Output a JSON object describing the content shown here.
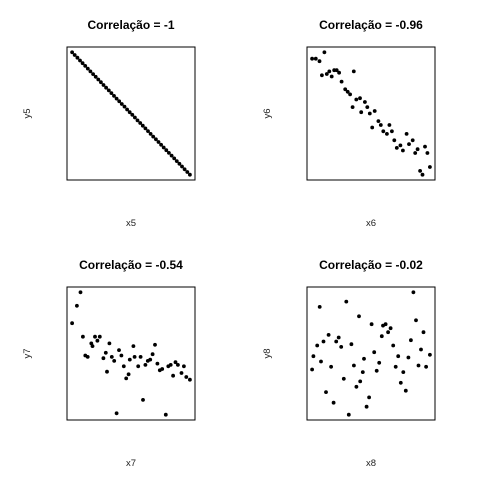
{
  "chart_data": [
    {
      "type": "scatter",
      "title": "Correlação = -1",
      "xlabel": "x5",
      "ylabel": "y5",
      "points": [
        [
          1,
          1.0
        ],
        [
          2,
          0.978
        ],
        [
          3,
          0.956
        ],
        [
          4,
          0.933
        ],
        [
          5,
          0.911
        ],
        [
          6,
          0.889
        ],
        [
          7,
          0.867
        ],
        [
          8,
          0.844
        ],
        [
          9,
          0.822
        ],
        [
          10,
          0.8
        ],
        [
          11,
          0.778
        ],
        [
          12,
          0.756
        ],
        [
          13,
          0.733
        ],
        [
          14,
          0.711
        ],
        [
          15,
          0.689
        ],
        [
          16,
          0.667
        ],
        [
          17,
          0.644
        ],
        [
          18,
          0.622
        ],
        [
          19,
          0.6
        ],
        [
          20,
          0.578
        ],
        [
          21,
          0.556
        ],
        [
          22,
          0.533
        ],
        [
          23,
          0.511
        ],
        [
          24,
          0.489
        ],
        [
          25,
          0.467
        ],
        [
          26,
          0.444
        ],
        [
          27,
          0.422
        ],
        [
          28,
          0.4
        ],
        [
          29,
          0.378
        ],
        [
          30,
          0.356
        ],
        [
          31,
          0.333
        ],
        [
          32,
          0.311
        ],
        [
          33,
          0.289
        ],
        [
          34,
          0.267
        ],
        [
          35,
          0.244
        ],
        [
          36,
          0.222
        ],
        [
          37,
          0.2
        ],
        [
          38,
          0.178
        ],
        [
          39,
          0.156
        ],
        [
          40,
          0.133
        ],
        [
          41,
          0.111
        ],
        [
          42,
          0.089
        ],
        [
          43,
          0.067
        ],
        [
          44,
          0.044
        ],
        [
          45,
          0.022
        ],
        [
          46,
          0.0
        ]
      ]
    },
    {
      "type": "scatter",
      "title": "Correlação = -0.96",
      "xlabel": "x6",
      "ylabel": "y6",
      "points": [
        [
          0.01,
          0.95
        ],
        [
          0.04,
          0.95
        ],
        [
          0.07,
          0.93
        ],
        [
          0.09,
          0.82
        ],
        [
          0.11,
          1.0
        ],
        [
          0.13,
          0.83
        ],
        [
          0.15,
          0.85
        ],
        [
          0.17,
          0.81
        ],
        [
          0.19,
          0.86
        ],
        [
          0.21,
          0.86
        ],
        [
          0.23,
          0.84
        ],
        [
          0.25,
          0.77
        ],
        [
          0.28,
          0.71
        ],
        [
          0.3,
          0.69
        ],
        [
          0.32,
          0.67
        ],
        [
          0.34,
          0.57
        ],
        [
          0.35,
          0.85
        ],
        [
          0.37,
          0.63
        ],
        [
          0.4,
          0.64
        ],
        [
          0.41,
          0.53
        ],
        [
          0.44,
          0.61
        ],
        [
          0.46,
          0.57
        ],
        [
          0.48,
          0.52
        ],
        [
          0.5,
          0.41
        ],
        [
          0.52,
          0.54
        ],
        [
          0.55,
          0.46
        ],
        [
          0.57,
          0.43
        ],
        [
          0.59,
          0.38
        ],
        [
          0.62,
          0.36
        ],
        [
          0.64,
          0.43
        ],
        [
          0.66,
          0.38
        ],
        [
          0.68,
          0.31
        ],
        [
          0.7,
          0.25
        ],
        [
          0.73,
          0.27
        ],
        [
          0.75,
          0.23
        ],
        [
          0.78,
          0.36
        ],
        [
          0.8,
          0.28
        ],
        [
          0.83,
          0.31
        ],
        [
          0.85,
          0.21
        ],
        [
          0.87,
          0.24
        ],
        [
          0.89,
          0.07
        ],
        [
          0.91,
          0.04
        ],
        [
          0.93,
          0.26
        ],
        [
          0.95,
          0.21
        ],
        [
          0.97,
          0.1
        ]
      ]
    },
    {
      "type": "scatter",
      "title": "Correlação = -0.54",
      "xlabel": "x7",
      "ylabel": "y7",
      "points": [
        [
          0.0,
          0.77
        ],
        [
          0.04,
          0.9
        ],
        [
          0.07,
          1.0
        ],
        [
          0.09,
          0.67
        ],
        [
          0.11,
          0.53
        ],
        [
          0.13,
          0.52
        ],
        [
          0.16,
          0.62
        ],
        [
          0.17,
          0.6
        ],
        [
          0.19,
          0.67
        ],
        [
          0.21,
          0.64
        ],
        [
          0.23,
          0.67
        ],
        [
          0.26,
          0.51
        ],
        [
          0.28,
          0.55
        ],
        [
          0.29,
          0.41
        ],
        [
          0.31,
          0.62
        ],
        [
          0.33,
          0.52
        ],
        [
          0.35,
          0.49
        ],
        [
          0.37,
          0.1
        ],
        [
          0.39,
          0.57
        ],
        [
          0.41,
          0.53
        ],
        [
          0.43,
          0.45
        ],
        [
          0.45,
          0.36
        ],
        [
          0.47,
          0.39
        ],
        [
          0.48,
          0.5
        ],
        [
          0.51,
          0.6
        ],
        [
          0.52,
          0.52
        ],
        [
          0.55,
          0.45
        ],
        [
          0.57,
          0.52
        ],
        [
          0.59,
          0.2
        ],
        [
          0.61,
          0.46
        ],
        [
          0.63,
          0.49
        ],
        [
          0.65,
          0.5
        ],
        [
          0.67,
          0.54
        ],
        [
          0.69,
          0.61
        ],
        [
          0.71,
          0.47
        ],
        [
          0.73,
          0.42
        ],
        [
          0.75,
          0.43
        ],
        [
          0.78,
          0.09
        ],
        [
          0.8,
          0.45
        ],
        [
          0.82,
          0.46
        ],
        [
          0.84,
          0.38
        ],
        [
          0.86,
          0.48
        ],
        [
          0.88,
          0.46
        ],
        [
          0.91,
          0.4
        ],
        [
          0.93,
          0.45
        ],
        [
          0.95,
          0.37
        ],
        [
          0.98,
          0.35
        ]
      ]
    },
    {
      "type": "scatter",
      "title": "Correlação = -0.02",
      "xlabel": "x8",
      "ylabel": "y8",
      "points": [
        [
          0.02,
          0.42
        ],
        [
          0.03,
          0.52
        ],
        [
          0.06,
          0.6
        ],
        [
          0.08,
          0.89
        ],
        [
          0.09,
          0.48
        ],
        [
          0.11,
          0.63
        ],
        [
          0.13,
          0.25
        ],
        [
          0.15,
          0.68
        ],
        [
          0.17,
          0.44
        ],
        [
          0.19,
          0.17
        ],
        [
          0.21,
          0.63
        ],
        [
          0.23,
          0.66
        ],
        [
          0.25,
          0.59
        ],
        [
          0.27,
          0.35
        ],
        [
          0.29,
          0.93
        ],
        [
          0.31,
          0.08
        ],
        [
          0.33,
          0.61
        ],
        [
          0.35,
          0.45
        ],
        [
          0.37,
          0.29
        ],
        [
          0.39,
          0.82
        ],
        [
          0.4,
          0.33
        ],
        [
          0.42,
          0.4
        ],
        [
          0.43,
          0.5
        ],
        [
          0.45,
          0.14
        ],
        [
          0.47,
          0.21
        ],
        [
          0.49,
          0.76
        ],
        [
          0.51,
          0.55
        ],
        [
          0.53,
          0.41
        ],
        [
          0.55,
          0.47
        ],
        [
          0.57,
          0.67
        ],
        [
          0.58,
          0.75
        ],
        [
          0.6,
          0.76
        ],
        [
          0.62,
          0.7
        ],
        [
          0.64,
          0.73
        ],
        [
          0.66,
          0.6
        ],
        [
          0.68,
          0.44
        ],
        [
          0.7,
          0.52
        ],
        [
          0.72,
          0.32
        ],
        [
          0.74,
          0.4
        ],
        [
          0.76,
          0.26
        ],
        [
          0.78,
          0.51
        ],
        [
          0.8,
          0.64
        ],
        [
          0.82,
          1.0
        ],
        [
          0.84,
          0.79
        ],
        [
          0.86,
          0.45
        ],
        [
          0.88,
          0.57
        ],
        [
          0.9,
          0.7
        ],
        [
          0.92,
          0.44
        ],
        [
          0.95,
          0.53
        ]
      ]
    }
  ]
}
